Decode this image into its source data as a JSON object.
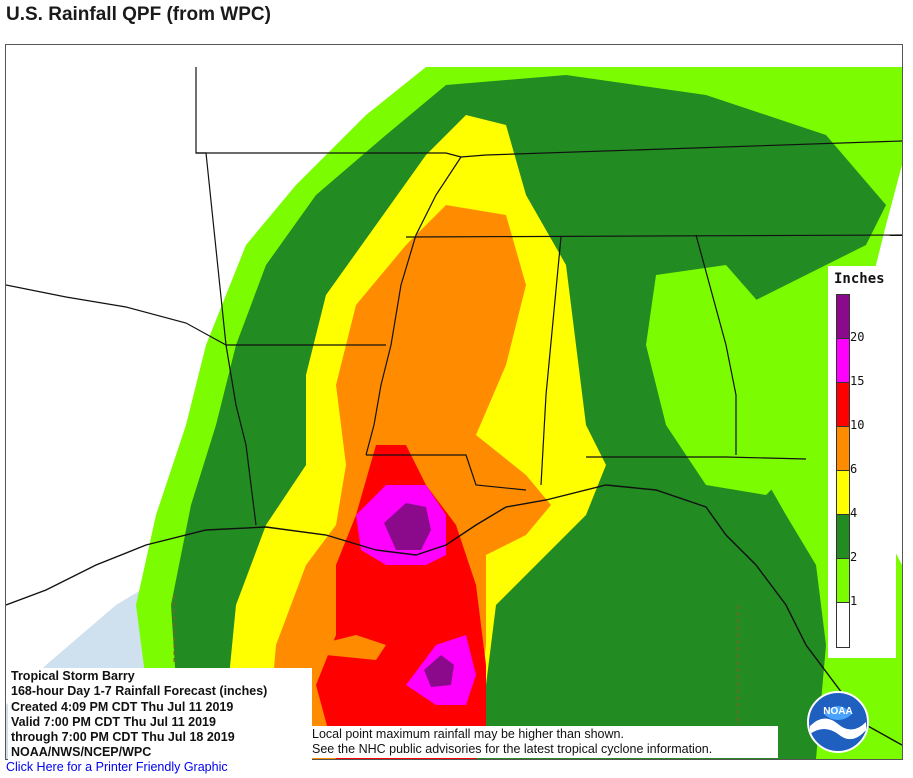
{
  "header": {
    "title": "U.S. Rainfall QPF (from WPC)"
  },
  "info": {
    "line1": "Tropical Storm Barry",
    "line2": "168-hour Day 1-7 Rainfall Forecast (inches)",
    "line3": "Created 4:09 PM CDT Thu Jul 11 2019",
    "line4": "Valid 7:00 PM CDT Thu Jul 11 2019",
    "line5": "through 7:00 PM CDT Thu Jul 18 2019",
    "line6": "NOAA/NWS/NCEP/WPC"
  },
  "note": {
    "line1": "Local point maximum rainfall may be higher than shown.",
    "line2": "See the NHC public advisories for the latest tropical cyclone information."
  },
  "legend": {
    "title": "Inches",
    "ticks": [
      "20",
      "15",
      "10",
      "6",
      "4",
      "2",
      "1"
    ],
    "colors": [
      "#8b0a8b",
      "#ff00ff",
      "#ff0000",
      "#ff8c00",
      "#ffff00",
      "#228b22",
      "#7cfc00",
      "#ffffff"
    ]
  },
  "colors": {
    "c1": "#7cfc00",
    "c2": "#228b22",
    "c4": "#ffff00",
    "c6": "#ff8c00",
    "c10": "#ff0000",
    "c15": "#ff00ff",
    "c20": "#8b0a8b",
    "water": "#cfe0ee"
  },
  "logo": {
    "text": "NOAA"
  },
  "footer": {
    "printer_link": "Click Here for a Printer Friendly Graphic"
  }
}
